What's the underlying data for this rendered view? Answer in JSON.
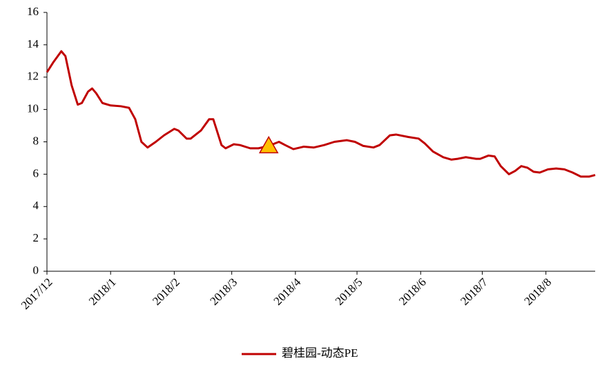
{
  "chart_data": {
    "type": "line",
    "x": [
      0,
      3,
      7,
      9,
      12,
      15,
      17,
      20,
      22,
      24,
      27,
      31,
      36,
      40,
      43,
      46,
      49,
      53,
      57,
      62,
      64,
      68,
      70,
      75,
      79,
      81,
      85,
      87,
      91,
      94,
      99,
      103,
      108,
      113,
      116,
      120,
      125,
      130,
      135,
      140,
      146,
      150,
      154,
      159,
      162,
      167,
      170,
      176,
      181,
      184,
      188,
      193,
      197,
      200,
      204,
      209,
      211,
      215,
      218,
      221,
      225,
      228,
      231,
      234,
      237,
      240,
      244,
      248,
      252,
      256,
      260,
      264,
      267
    ],
    "series": [
      {
        "name": "碧桂园-动态PE",
        "color": "#c00000",
        "values": [
          12.3,
          12.9,
          13.6,
          13.3,
          11.5,
          10.3,
          10.4,
          11.1,
          11.3,
          11.0,
          10.4,
          10.25,
          10.2,
          10.1,
          9.4,
          8.0,
          7.65,
          8.0,
          8.4,
          8.8,
          8.7,
          8.2,
          8.2,
          8.7,
          9.4,
          9.4,
          7.8,
          7.6,
          7.85,
          7.8,
          7.6,
          7.6,
          7.75,
          8.0,
          7.8,
          7.55,
          7.7,
          7.65,
          7.8,
          8.0,
          8.1,
          8.0,
          7.75,
          7.65,
          7.8,
          8.4,
          8.45,
          8.3,
          8.2,
          7.9,
          7.4,
          7.05,
          6.9,
          6.95,
          7.05,
          6.95,
          6.95,
          7.15,
          7.1,
          6.5,
          6.0,
          6.2,
          6.5,
          6.4,
          6.15,
          6.1,
          6.3,
          6.35,
          6.3,
          6.1,
          5.85,
          5.85,
          5.95
        ]
      }
    ],
    "marker": {
      "x": 108,
      "y": 7.75,
      "color": "#ffc000"
    },
    "xlim": [
      0,
      267
    ],
    "xticks": [
      {
        "value": 0,
        "label": "2017/12"
      },
      {
        "value": 31,
        "label": "2018/1"
      },
      {
        "value": 62,
        "label": "2018/2"
      },
      {
        "value": 90,
        "label": "2018/3"
      },
      {
        "value": 121,
        "label": "2018/4"
      },
      {
        "value": 151,
        "label": "2018/5"
      },
      {
        "value": 182,
        "label": "2018/6"
      },
      {
        "value": 212,
        "label": "2018/7"
      },
      {
        "value": 243,
        "label": "2018/8"
      }
    ],
    "ylim": [
      0,
      16
    ],
    "yticks": [
      0,
      2,
      4,
      6,
      8,
      10,
      12,
      14,
      16
    ],
    "grid": false
  }
}
